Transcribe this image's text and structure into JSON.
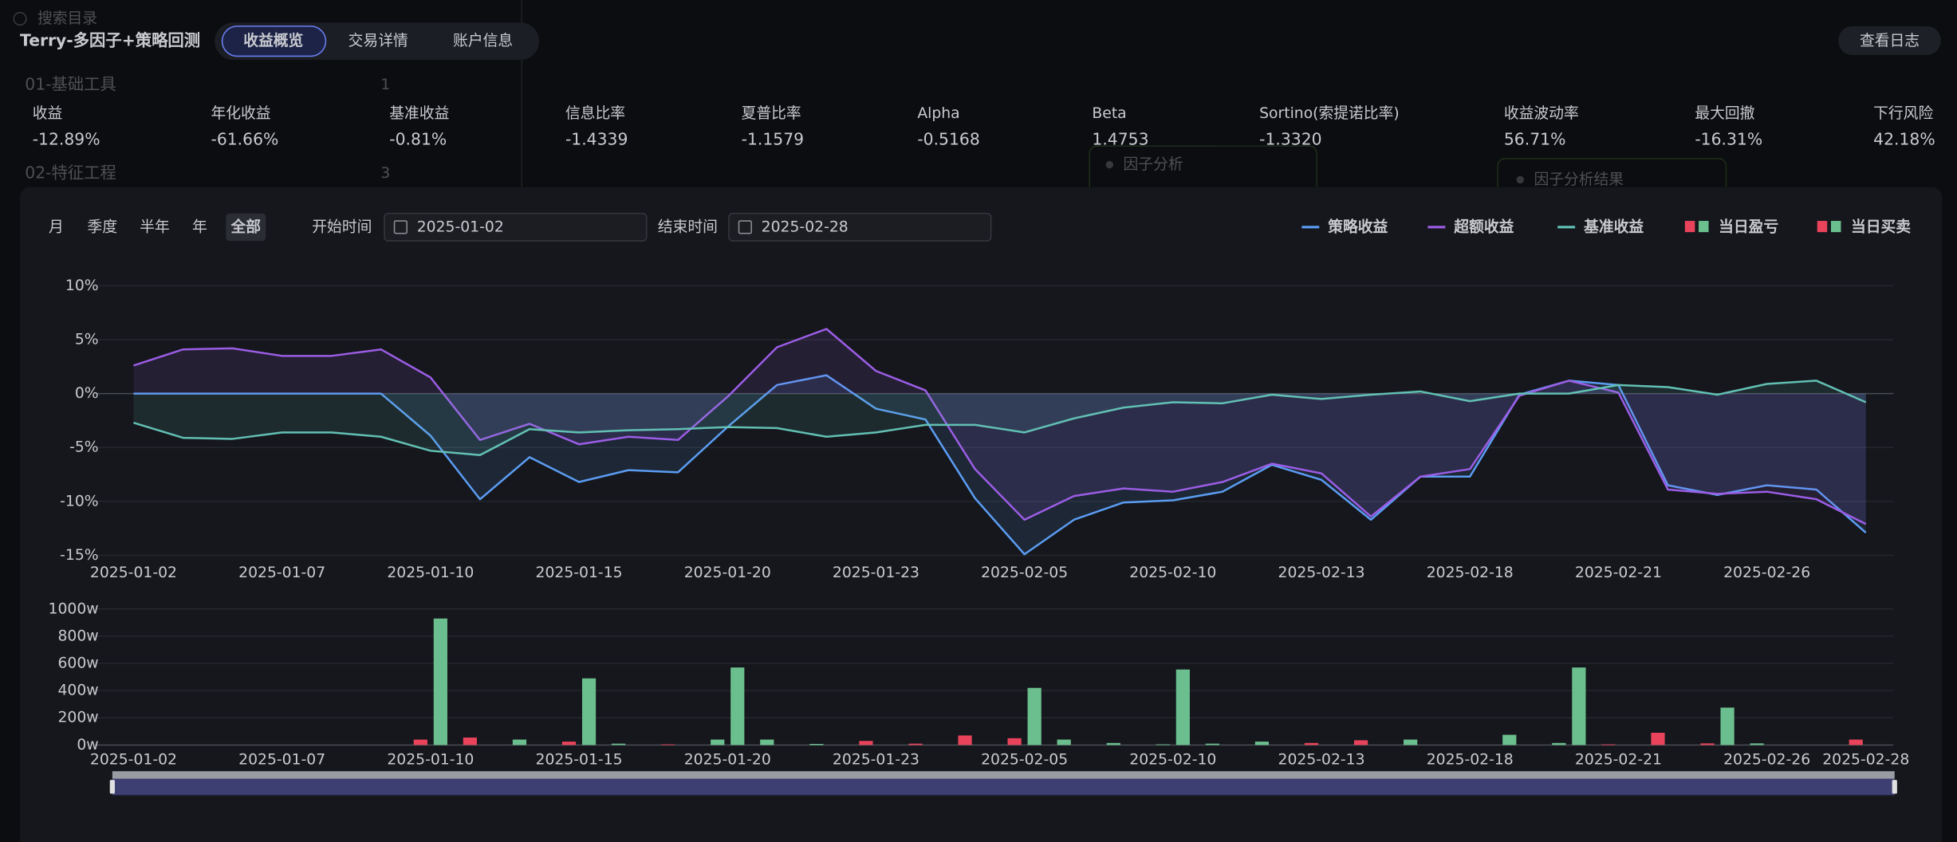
{
  "background": {
    "search": "搜索目录",
    "section1": "01-基础工具",
    "count1": "1",
    "section2": "02-特征工程",
    "count2": "3",
    "card1": "因子分析",
    "card2": "因子分析结果"
  },
  "header": {
    "title": "Terry-多因子+策略回测",
    "tabs": [
      "收益概览",
      "交易详情",
      "账户信息"
    ],
    "active_tab": 0,
    "log_button": "查看日志"
  },
  "metrics": [
    {
      "label": "收益",
      "value": "-12.89%",
      "color": "#5fc48e"
    },
    {
      "label": "年化收益",
      "value": "-61.66%",
      "color": "#5fc48e"
    },
    {
      "label": "基准收益",
      "value": "-0.81%",
      "color": "#5fc48e"
    },
    {
      "label": "信息比率",
      "value": "-1.4339",
      "color": "#5fc48e"
    },
    {
      "label": "夏普比率",
      "value": "-1.1579",
      "color": "#5fc48e"
    },
    {
      "label": "Alpha",
      "value": "-0.5168",
      "color": "#5fc48e"
    },
    {
      "label": "Beta",
      "value": "1.4753",
      "color": "#e8435a"
    },
    {
      "label": "Sortino(索提诺比率)",
      "value": "-1.3320",
      "color": "#5fc48e"
    },
    {
      "label": "收益波动率",
      "value": "56.71%",
      "color": "#e8435a"
    },
    {
      "label": "最大回撤",
      "value": "-16.31%",
      "color": "#5fc48e"
    },
    {
      "label": "下行风险",
      "value": "42.18%",
      "color": "#e8435a"
    }
  ],
  "controls": {
    "periods": [
      "月",
      "季度",
      "半年",
      "年",
      "全部"
    ],
    "active_period": 4,
    "start_label": "开始时间",
    "start_date": "2025-01-02",
    "end_label": "结束时间",
    "end_date": "2025-02-28"
  },
  "chart_data": [
    {
      "type": "line",
      "area": true,
      "grid": true,
      "categories": [
        "2025-01-02",
        null,
        null,
        "2025-01-07",
        null,
        null,
        "2025-01-10",
        null,
        null,
        "2025-01-15",
        null,
        null,
        "2025-01-20",
        null,
        null,
        "2025-01-23",
        null,
        null,
        "2025-02-05",
        null,
        null,
        "2025-02-10",
        null,
        null,
        "2025-02-13",
        null,
        null,
        "2025-02-18",
        null,
        null,
        "2025-02-21",
        null,
        null,
        "2025-02-26",
        null,
        null
      ],
      "ylim": [
        -15,
        10
      ],
      "yticks": [
        {
          "value": -15,
          "label": "-15%"
        },
        {
          "value": -10,
          "label": "-10%"
        },
        {
          "value": -5,
          "label": "-5%"
        },
        {
          "value": 0,
          "label": "0%"
        },
        {
          "value": 5,
          "label": "5%"
        },
        {
          "value": 10,
          "label": "10%"
        }
      ],
      "series": [
        {
          "name": "策略收益",
          "color": "#5b9cf2",
          "values": [
            0,
            0,
            0,
            0,
            0,
            0,
            -3.9,
            -9.8,
            -5.9,
            -8.2,
            -7.1,
            -7.3,
            -3.1,
            0.8,
            1.7,
            -1.4,
            -2.4,
            -9.7,
            -14.9,
            -11.7,
            -10.1,
            -9.9,
            -9.1,
            -6.6,
            -8.0,
            -11.7,
            -7.7,
            -7.7,
            -0.1,
            1.2,
            0.8,
            -8.5,
            -9.4,
            -8.5,
            -8.9,
            -12.9
          ]
        },
        {
          "name": "超额收益",
          "color": "#9b5de5",
          "values": [
            2.6,
            4.1,
            4.2,
            3.5,
            3.5,
            4.1,
            1.5,
            -4.3,
            -2.8,
            -4.7,
            -4.0,
            -4.3,
            -0.3,
            4.3,
            6.0,
            2.1,
            0.3,
            -7.0,
            -11.7,
            -9.5,
            -8.8,
            -9.1,
            -8.2,
            -6.5,
            -7.4,
            -11.4,
            -7.7,
            -7.0,
            -0.2,
            1.2,
            0.1,
            -8.9,
            -9.3,
            -9.1,
            -9.8,
            -12.1
          ]
        },
        {
          "name": "基准收益",
          "color": "#62c0b4",
          "values": [
            -2.7,
            -4.1,
            -4.2,
            -3.6,
            -3.6,
            -4.0,
            -5.3,
            -5.7,
            -3.3,
            -3.6,
            -3.4,
            -3.3,
            -3.1,
            -3.2,
            -4.0,
            -3.6,
            -2.9,
            -2.9,
            -3.6,
            -2.3,
            -1.3,
            -0.8,
            -0.9,
            -0.1,
            -0.5,
            -0.1,
            0.2,
            -0.7,
            0,
            0,
            0.8,
            0.6,
            -0.1,
            0.9,
            1.2,
            -0.8
          ]
        }
      ]
    },
    {
      "type": "bar",
      "grid": true,
      "categories": [
        "2025-01-02",
        null,
        null,
        "2025-01-07",
        null,
        null,
        "2025-01-10",
        null,
        null,
        "2025-01-15",
        null,
        null,
        "2025-01-20",
        null,
        null,
        "2025-01-23",
        null,
        null,
        "2025-02-05",
        null,
        null,
        "2025-02-10",
        null,
        null,
        "2025-02-13",
        null,
        null,
        "2025-02-18",
        null,
        null,
        "2025-02-21",
        null,
        null,
        "2025-02-26",
        null,
        "2025-02-28"
      ],
      "ylim": [
        0,
        1000
      ],
      "yticks": [
        {
          "value": 0,
          "label": "0w"
        },
        {
          "value": 200,
          "label": "200w"
        },
        {
          "value": 400,
          "label": "400w"
        },
        {
          "value": 600,
          "label": "600w"
        },
        {
          "value": 800,
          "label": "800w"
        },
        {
          "value": 1000,
          "label": "1000w"
        }
      ],
      "series": [
        {
          "name": "当日盈亏",
          "color": [
            "#e8435a",
            "#6bbf8e"
          ],
          "values": [
            0,
            0,
            0,
            0,
            0,
            0,
            40,
            55,
            40,
            25,
            10,
            5,
            40,
            40,
            8,
            30,
            10,
            70,
            50,
            40,
            15,
            5,
            10,
            25,
            15,
            35,
            40,
            0,
            75,
            15,
            5,
            90,
            12,
            12,
            0,
            40
          ],
          "point_colors": [
            "#6bbf8e",
            "#6bbf8e",
            "#6bbf8e",
            "#6bbf8e",
            "#6bbf8e",
            "#6bbf8e",
            "#e8435a",
            "#e8435a",
            "#6bbf8e",
            "#e8435a",
            "#6bbf8e",
            "#e8435a",
            "#6bbf8e",
            "#6bbf8e",
            "#6bbf8e",
            "#e8435a",
            "#e8435a",
            "#e8435a",
            "#e8435a",
            "#6bbf8e",
            "#6bbf8e",
            "#6bbf8e",
            "#6bbf8e",
            "#6bbf8e",
            "#e8435a",
            "#e8435a",
            "#6bbf8e",
            "#6bbf8e",
            "#6bbf8e",
            "#6bbf8e",
            "#e8435a",
            "#e8435a",
            "#e8435a",
            "#6bbf8e",
            "#6bbf8e",
            "#e8435a"
          ]
        },
        {
          "name": "当日买卖",
          "color": [
            "#e8435a",
            "#6bbf8e"
          ],
          "values": [
            0,
            0,
            0,
            0,
            0,
            0,
            930,
            0,
            0,
            490,
            0,
            0,
            570,
            0,
            0,
            0,
            0,
            0,
            420,
            0,
            0,
            555,
            0,
            0,
            0,
            0,
            0,
            0,
            0,
            570,
            0,
            0,
            275,
            0,
            0,
            0
          ],
          "point_colors": [
            "#6bbf8e",
            "#6bbf8e",
            "#6bbf8e",
            "#6bbf8e",
            "#6bbf8e",
            "#6bbf8e",
            "#6bbf8e",
            "#6bbf8e",
            "#6bbf8e",
            "#6bbf8e",
            "#6bbf8e",
            "#6bbf8e",
            "#6bbf8e",
            "#6bbf8e",
            "#6bbf8e",
            "#6bbf8e",
            "#6bbf8e",
            "#6bbf8e",
            "#6bbf8e",
            "#6bbf8e",
            "#6bbf8e",
            "#6bbf8e",
            "#6bbf8e",
            "#6bbf8e",
            "#6bbf8e",
            "#6bbf8e",
            "#6bbf8e",
            "#6bbf8e",
            "#6bbf8e",
            "#6bbf8e",
            "#6bbf8e",
            "#6bbf8e",
            "#6bbf8e",
            "#6bbf8e",
            "#6bbf8e",
            "#6bbf8e"
          ]
        }
      ]
    }
  ]
}
